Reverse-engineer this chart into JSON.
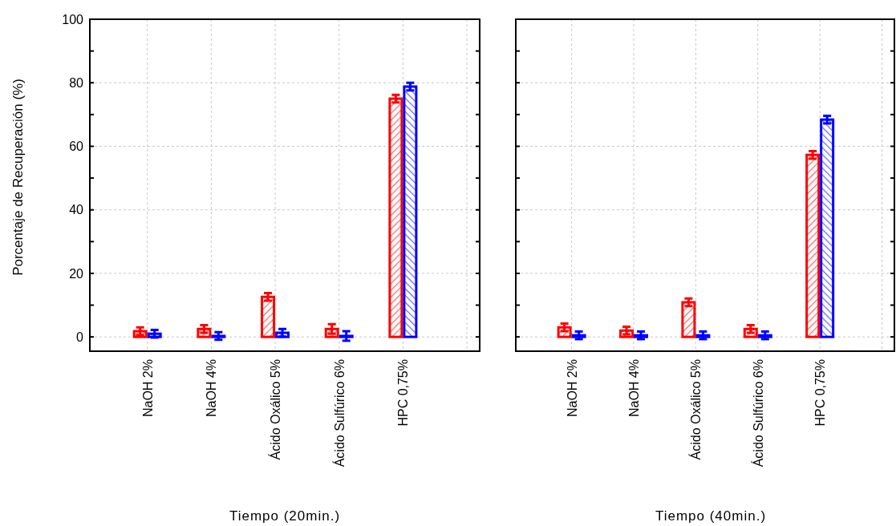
{
  "chart_data": [
    {
      "type": "bar",
      "xlabel": "Tiempo (20min.)",
      "ylabel": "Porcentaje de Recuperación (%)",
      "categories": [
        "NaOH 2%",
        "NaOH 4%",
        "Ácido Oxálico 5%",
        "Ácido Sulfúrico 6%",
        "HPC 0,75%",
        null
      ],
      "series": [
        {
          "color": "#ff0000",
          "values": [
            1.8,
            2.5,
            12.6,
            2.5,
            75.0,
            null
          ],
          "errors": [
            1.2,
            1.2,
            1.2,
            1.5,
            1.2,
            null
          ]
        },
        {
          "color": "#0000ff",
          "values": [
            1.0,
            0.3,
            1.3,
            0.3,
            78.8,
            null
          ],
          "errors": [
            1.2,
            1.2,
            1.2,
            1.5,
            1.2,
            null
          ]
        }
      ],
      "ylim": [
        -4.5,
        100
      ],
      "yticks": [
        0,
        {
          "value": 10,
          "label": null
        },
        20,
        {
          "value": 30,
          "label": null
        },
        40,
        {
          "value": 50,
          "label": null
        },
        60,
        {
          "value": 70,
          "label": null
        },
        80,
        {
          "value": 90,
          "label": null
        },
        100
      ],
      "grid": true
    },
    {
      "type": "bar",
      "xlabel": "Tiempo (40min.)",
      "categories": [
        "NaOH 2%",
        "NaOH 4%",
        "Ácido Oxálico 5%",
        "Ácido Sulfúrico 6%",
        "HPC 0,75%",
        null
      ],
      "series": [
        {
          "color": "#ff0000",
          "values": [
            3.0,
            2.0,
            10.9,
            2.5,
            57.3,
            null
          ],
          "errors": [
            1.2,
            1.2,
            1.2,
            1.2,
            1.2,
            null
          ]
        },
        {
          "color": "#0000ff",
          "values": [
            0.5,
            0.5,
            0.5,
            0.5,
            68.4,
            null
          ],
          "errors": [
            1.2,
            1.2,
            1.2,
            1.2,
            1.2,
            null
          ]
        }
      ],
      "ylim": [
        -4.5,
        100
      ],
      "yticks": [
        0,
        {
          "value": 10,
          "label": null
        },
        20,
        {
          "value": 30,
          "label": null
        },
        40,
        {
          "value": 50,
          "label": null
        },
        60,
        {
          "value": 70,
          "label": null
        },
        80,
        {
          "value": 90,
          "label": null
        },
        100
      ],
      "grid": true,
      "tick_labels": "x"
    }
  ]
}
